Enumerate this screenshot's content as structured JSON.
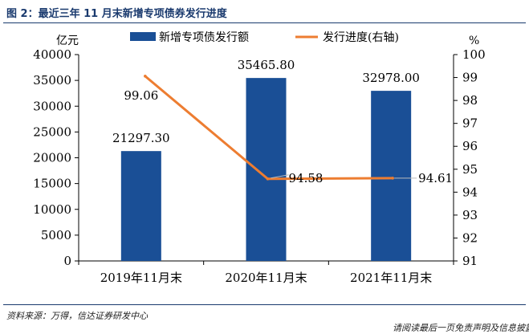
{
  "figure": {
    "title": "图 2：最近三年 11 月末新增专项债券发行进度",
    "source": "资料来源：万得，信达证券研发中心",
    "cutoff_text": "请阅读最后一页免责声明及信息披露"
  },
  "colors": {
    "bar": "#1a4f96",
    "line": "#ed7d31",
    "axis": "#000000"
  },
  "chart_data": {
    "type": "bar",
    "categories": [
      "2019年11月末",
      "2020年11月末",
      "2021年11月末"
    ],
    "series": [
      {
        "name": "新增专项债发行额",
        "type": "bar",
        "axis": "left",
        "values": [
          21297.3,
          35465.8,
          32978.0
        ],
        "labels": [
          "21297.30",
          "35465.80",
          "32978.00"
        ]
      },
      {
        "name": "发行进度(右轴)",
        "type": "line",
        "axis": "right",
        "values": [
          99.06,
          94.58,
          94.61
        ],
        "labels": [
          "99.06",
          "94.58",
          "94.61"
        ]
      }
    ],
    "y_left": {
      "label": "亿元",
      "min": 0,
      "max": 40000,
      "ticks": [
        "0",
        "5000",
        "10000",
        "15000",
        "20000",
        "25000",
        "30000",
        "35000",
        "40000"
      ]
    },
    "y_right": {
      "label": "%",
      "min": 91,
      "max": 100,
      "ticks": [
        "91",
        "92",
        "93",
        "94",
        "95",
        "96",
        "97",
        "98",
        "99",
        "100"
      ]
    },
    "legend": "top",
    "grid": false
  }
}
